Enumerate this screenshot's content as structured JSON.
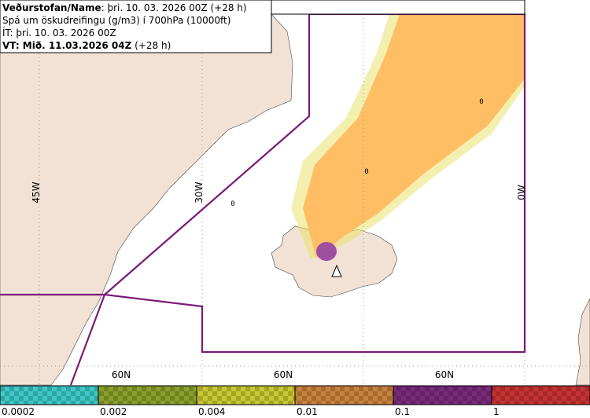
{
  "header": {
    "line1_bold": "Veðurstofan/Name",
    "line1_rest": ": þri. 10. 03. 2026 00Z (+28 h)",
    "line2": "Spá um öskudreifingu (g/m3) í 700hPa (10000ft)",
    "line3": "ÍT: þri. 10. 03. 2026 00Z",
    "line4_bold": "VT: Mið. 11.03.2026 04Z",
    "line4_rest": " (+28 h)"
  },
  "map": {
    "longitude_labels": [
      "45W",
      "30W",
      "0W"
    ],
    "latitude_labels": [
      "60N",
      "60N",
      "60N"
    ],
    "markers": [
      "0",
      "0",
      "0"
    ]
  },
  "legend": {
    "items": [
      {
        "label": "0.0002",
        "color": "#3cc8c8"
      },
      {
        "label": "0.002",
        "color": "#8aa02a"
      },
      {
        "label": "0.004",
        "color": "#c8c832"
      },
      {
        "label": "0.01",
        "color": "#c8823c"
      },
      {
        "label": "0.1",
        "color": "#7a2a7a"
      },
      {
        "label": "1",
        "color": "#c83232"
      }
    ]
  }
}
